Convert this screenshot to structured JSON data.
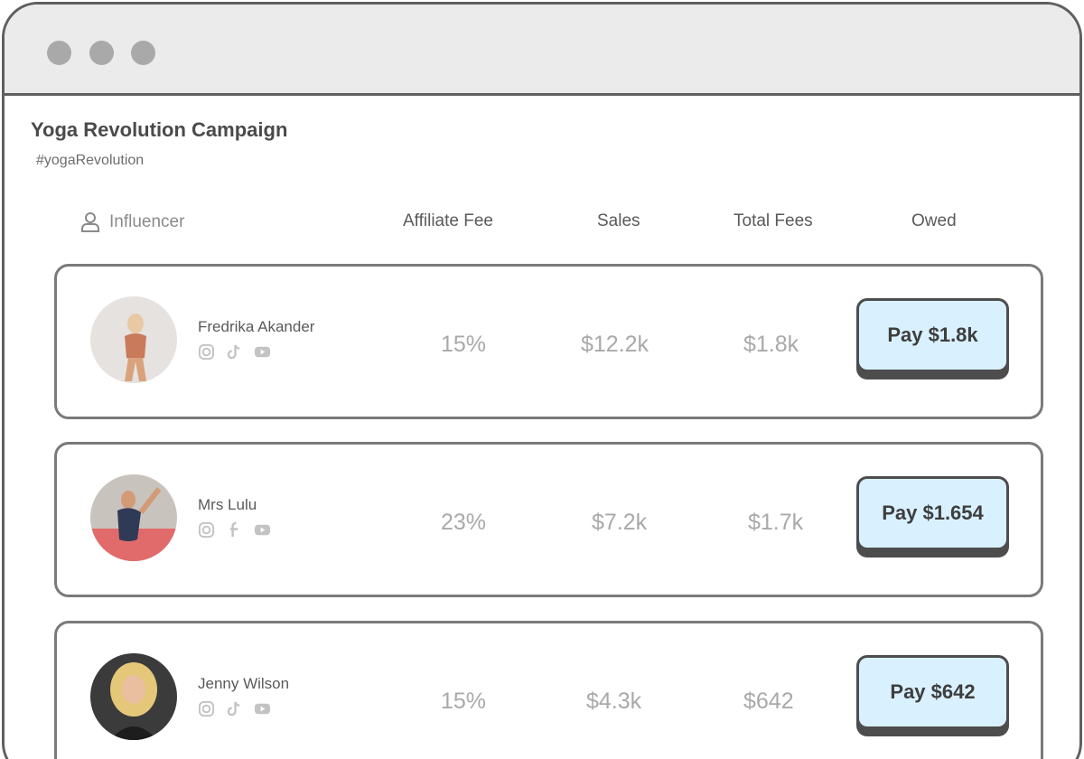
{
  "campaign": {
    "title": "Yoga Revolution Campaign",
    "hashtag": "#yogaRevolution"
  },
  "columns": {
    "influencer": "Influencer",
    "affiliate_fee": "Affiliate Fee",
    "sales": "Sales",
    "total_fees": "Total Fees",
    "owed": "Owed"
  },
  "rows": [
    {
      "name": "Fredrika Akander",
      "socials": [
        "instagram-icon",
        "tiktok-icon",
        "youtube-icon"
      ],
      "affiliate_fee": "15%",
      "sales": "$12.2k",
      "total_fees": "$1.8k",
      "pay_label": "Pay $1.8k"
    },
    {
      "name": "Mrs Lulu",
      "socials": [
        "instagram-icon",
        "facebook-icon",
        "youtube-icon"
      ],
      "affiliate_fee": "23%",
      "sales": "$7.2k",
      "total_fees": "$1.7k",
      "pay_label": "Pay $1.654"
    },
    {
      "name": "Jenny Wilson",
      "socials": [
        "instagram-icon",
        "tiktok-icon",
        "youtube-icon"
      ],
      "affiliate_fee": "15%",
      "sales": "$4.3k",
      "total_fees": "$642",
      "pay_label": "Pay $642"
    }
  ],
  "colors": {
    "pay_button_bg": "#d9f1ff",
    "border": "#5f5f5f",
    "titlebar": "#ebebeb"
  }
}
